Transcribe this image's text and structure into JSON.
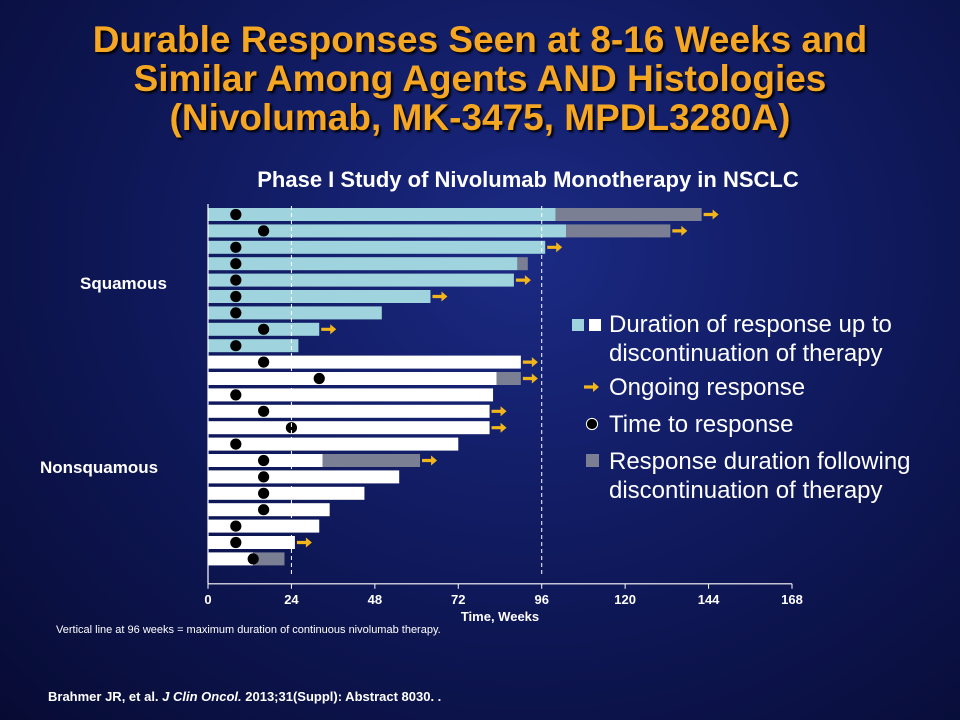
{
  "slide": {
    "title_lines": [
      "Durable Responses Seen at 8-16 Weeks and",
      "Similar Among Agents AND Histologies",
      "(Nivolumab, MK-3475, MPDL3280A)"
    ],
    "footnote": "Vertical line at 96 weeks = maximum duration of continuous nivolumab  therapy.",
    "reference": {
      "authors": "Brahmer JR, et al.",
      "journal": "J Clin Oncol.",
      "rest": " 2013;31(Suppl): Abstract 8030. ."
    }
  },
  "legend": {
    "duration": "Duration of response up to discontinuation of therapy",
    "ongoing": "Ongoing response",
    "time_to_response": "Time to response",
    "post_discontinuation": "Response duration following discontinuation of therapy"
  },
  "colors": {
    "squamous_bar": "#9fd3de",
    "nonsquamous_bar": "#ffffff",
    "post_discontinuation": "#7b7f93",
    "arrow": "#f2b61a",
    "marker": "#000000",
    "title": "#f5a623"
  },
  "chart_data": {
    "type": "bar",
    "orientation": "horizontal",
    "title": "Phase I Study of Nivolumab Monotherapy in NSCLC",
    "xlabel": "Time, Weeks",
    "xlim": [
      0,
      168
    ],
    "xticks": [
      0,
      24,
      48,
      72,
      96,
      120,
      144,
      168
    ],
    "reference_lines": [
      24,
      96
    ],
    "groups": [
      {
        "name": "Squamous",
        "rows": [
          0,
          8
        ]
      },
      {
        "name": "Nonsquamous",
        "rows": [
          9,
          21
        ]
      }
    ],
    "patients": [
      {
        "group": "Squamous",
        "on_therapy": 100,
        "post_discontinuation_end": 142,
        "time_to_response": 8,
        "ongoing": true
      },
      {
        "group": "Squamous",
        "on_therapy": 103,
        "post_discontinuation_end": 133,
        "time_to_response": 16,
        "ongoing": true
      },
      {
        "group": "Squamous",
        "on_therapy": 97,
        "post_discontinuation_end": null,
        "time_to_response": 8,
        "ongoing": true
      },
      {
        "group": "Squamous",
        "on_therapy": 89,
        "post_discontinuation_end": 92,
        "time_to_response": 8,
        "ongoing": false
      },
      {
        "group": "Squamous",
        "on_therapy": 88,
        "post_discontinuation_end": null,
        "time_to_response": 8,
        "ongoing": true
      },
      {
        "group": "Squamous",
        "on_therapy": 64,
        "post_discontinuation_end": null,
        "time_to_response": 8,
        "ongoing": true
      },
      {
        "group": "Squamous",
        "on_therapy": 50,
        "post_discontinuation_end": null,
        "time_to_response": 8,
        "ongoing": false
      },
      {
        "group": "Squamous",
        "on_therapy": 32,
        "post_discontinuation_end": null,
        "time_to_response": 16,
        "ongoing": true
      },
      {
        "group": "Squamous",
        "on_therapy": 26,
        "post_discontinuation_end": null,
        "time_to_response": 8,
        "ongoing": false
      },
      {
        "group": "Nonsquamous",
        "on_therapy": 90,
        "post_discontinuation_end": null,
        "time_to_response": 16,
        "ongoing": true
      },
      {
        "group": "Nonsquamous",
        "on_therapy": 83,
        "post_discontinuation_end": 90,
        "time_to_response": 32,
        "ongoing": true
      },
      {
        "group": "Nonsquamous",
        "on_therapy": 82,
        "post_discontinuation_end": null,
        "time_to_response": 8,
        "ongoing": false
      },
      {
        "group": "Nonsquamous",
        "on_therapy": 81,
        "post_discontinuation_end": null,
        "time_to_response": 16,
        "ongoing": true
      },
      {
        "group": "Nonsquamous",
        "on_therapy": 81,
        "post_discontinuation_end": null,
        "time_to_response": 24,
        "ongoing": true
      },
      {
        "group": "Nonsquamous",
        "on_therapy": 72,
        "post_discontinuation_end": null,
        "time_to_response": 8,
        "ongoing": false
      },
      {
        "group": "Nonsquamous",
        "on_therapy": 33,
        "post_discontinuation_end": 61,
        "time_to_response": 16,
        "ongoing": true
      },
      {
        "group": "Nonsquamous",
        "on_therapy": 55,
        "post_discontinuation_end": null,
        "time_to_response": 16,
        "ongoing": false
      },
      {
        "group": "Nonsquamous",
        "on_therapy": 45,
        "post_discontinuation_end": null,
        "time_to_response": 16,
        "ongoing": false
      },
      {
        "group": "Nonsquamous",
        "on_therapy": 35,
        "post_discontinuation_end": null,
        "time_to_response": 16,
        "ongoing": false
      },
      {
        "group": "Nonsquamous",
        "on_therapy": 32,
        "post_discontinuation_end": null,
        "time_to_response": 8,
        "ongoing": false
      },
      {
        "group": "Nonsquamous",
        "on_therapy": 25,
        "post_discontinuation_end": null,
        "time_to_response": 8,
        "ongoing": true
      },
      {
        "group": "Nonsquamous",
        "on_therapy": 13,
        "post_discontinuation_end": 22,
        "time_to_response": 13,
        "ongoing": false
      }
    ]
  }
}
